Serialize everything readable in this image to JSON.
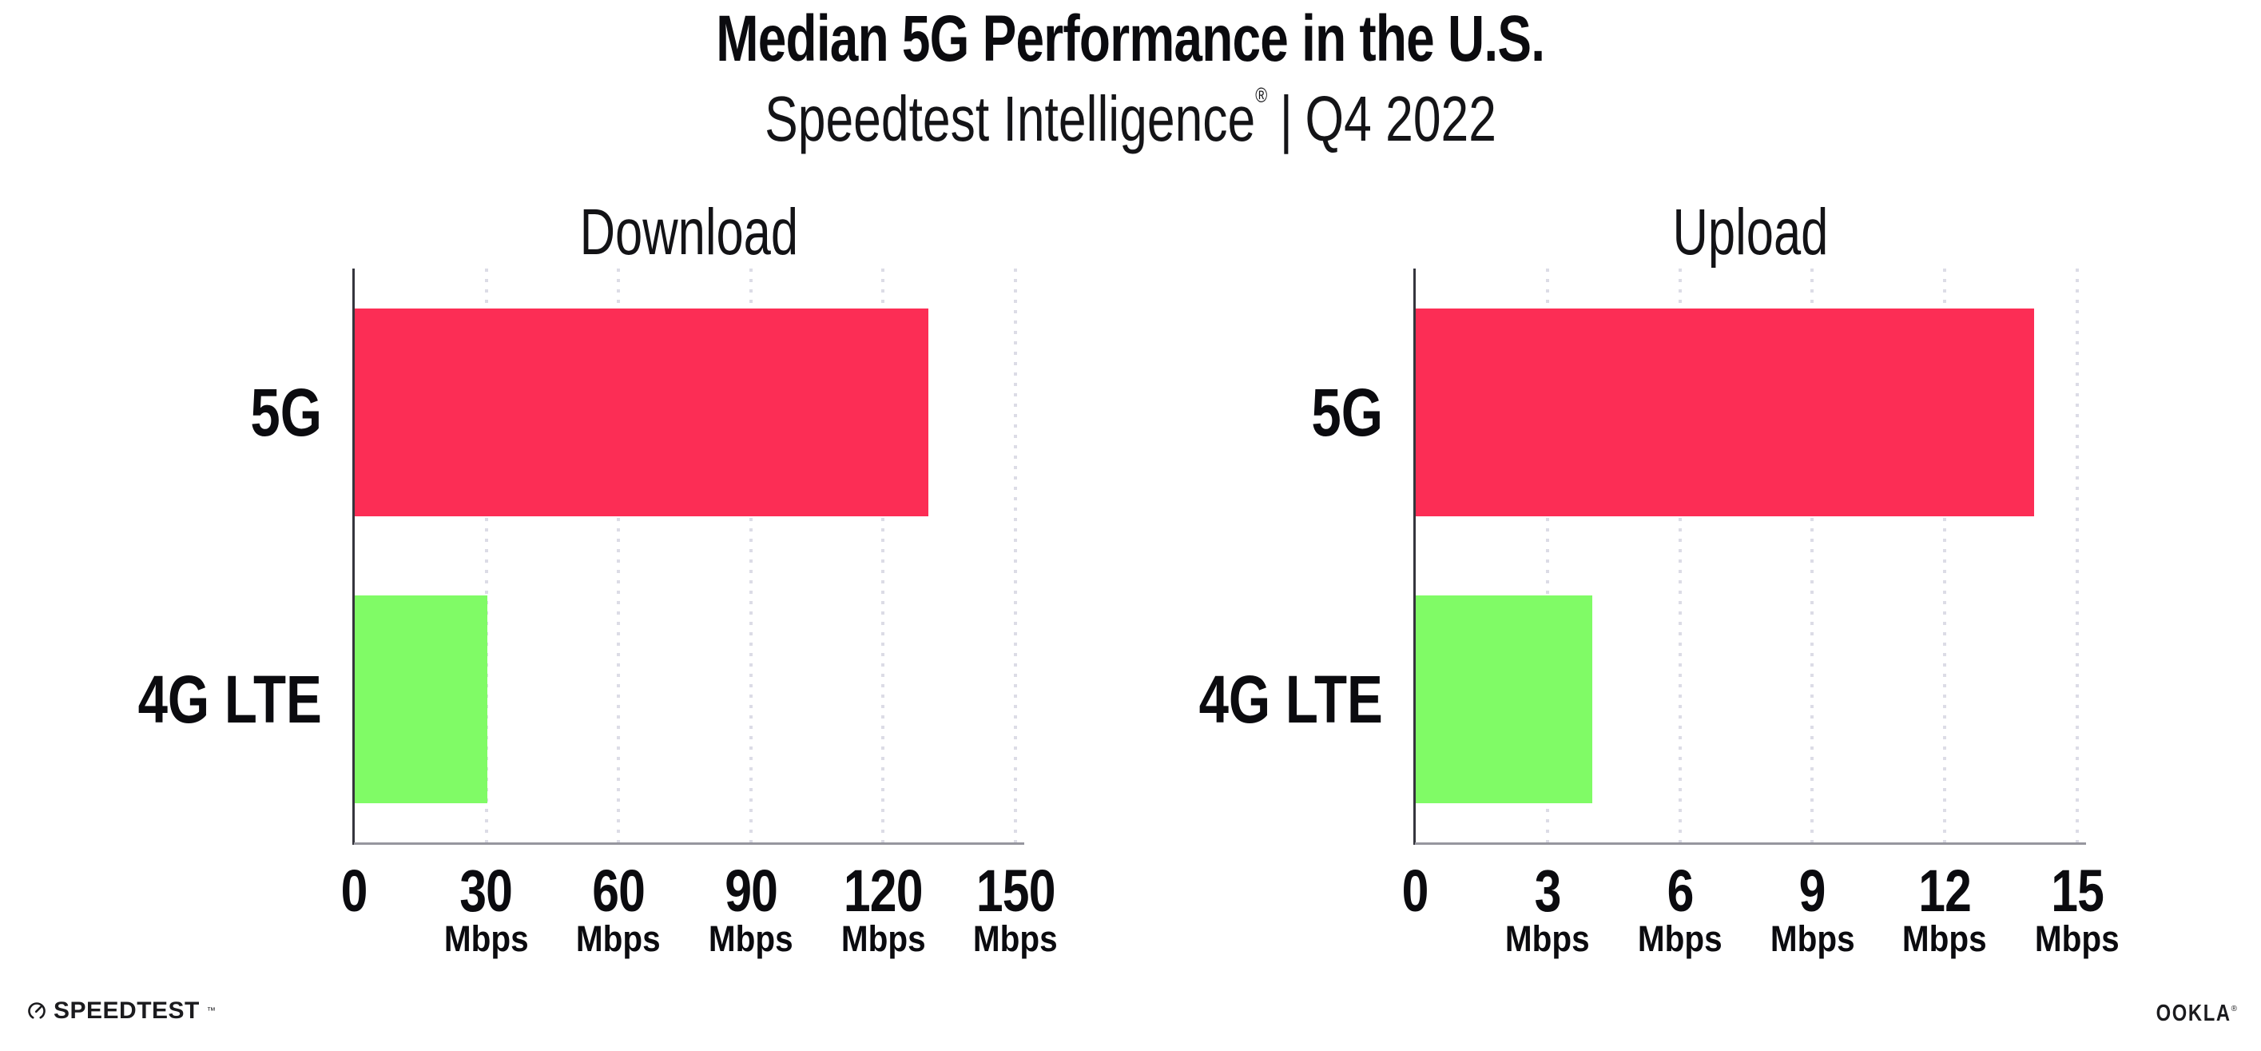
{
  "header": {
    "title": "Median 5G Performance in the U.S.",
    "subtitle_brand": "Speedtest Intelligence",
    "subtitle_reg": "®",
    "subtitle_separator": "|",
    "subtitle_period": "Q4 2022"
  },
  "chart_data": [
    {
      "type": "bar",
      "orientation": "horizontal",
      "title": "Download",
      "categories": [
        "5G",
        "4G LTE"
      ],
      "values": [
        130,
        30
      ],
      "unit": "Mbps",
      "xticks": [
        0,
        30,
        60,
        90,
        120,
        150
      ],
      "tick_unit_label": "Mbps",
      "xlim": [
        0,
        152
      ],
      "series_colors": [
        "#FC2D55",
        "#80FB66"
      ],
      "grid": "vertical-dotted",
      "legend": "none"
    },
    {
      "type": "bar",
      "orientation": "horizontal",
      "title": "Upload",
      "categories": [
        "5G",
        "4G LTE"
      ],
      "values": [
        14,
        4
      ],
      "unit": "Mbps",
      "xticks": [
        0,
        3,
        6,
        9,
        12,
        15
      ],
      "tick_unit_label": "Mbps",
      "xlim": [
        0,
        15.2
      ],
      "series_colors": [
        "#FC2D55",
        "#80FB66"
      ],
      "grid": "vertical-dotted",
      "legend": "none"
    }
  ],
  "footer": {
    "speedtest_label": "SPEEDTEST",
    "speedtest_trademark": "™",
    "ookla_label": "OOKLA",
    "ookla_registered": "®"
  },
  "colors": {
    "bar_5g": "#FC2D55",
    "bar_4g_lte": "#80FB66",
    "axis_line": "#96969E",
    "y_axis_spine": "#35353D",
    "gridline": "#DCDCE6",
    "text": "#0B0B0F",
    "background": "#FFFFFF"
  }
}
